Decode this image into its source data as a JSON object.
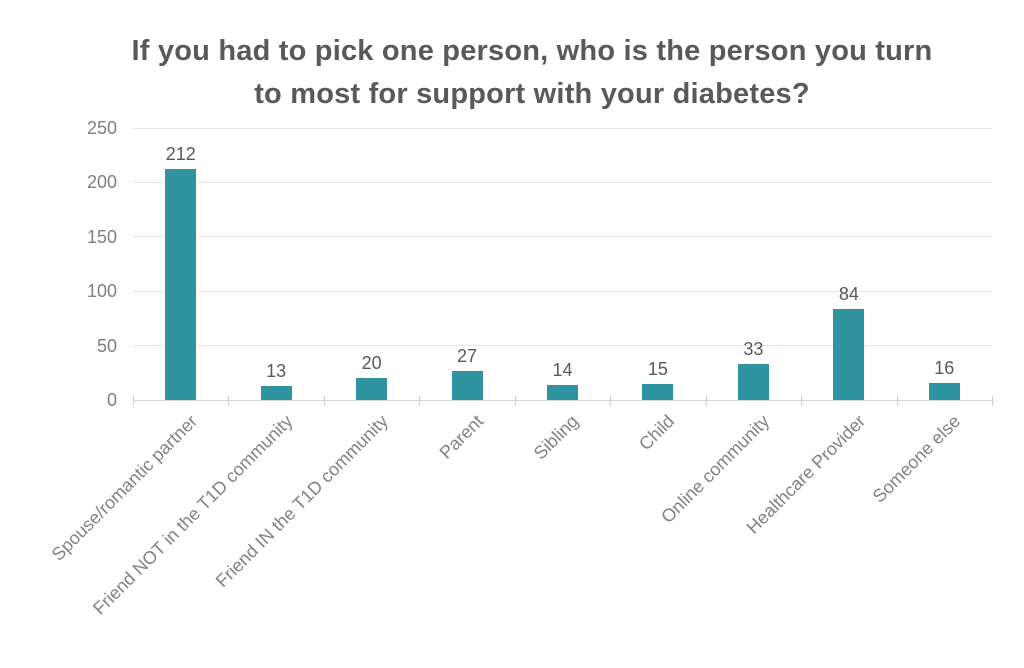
{
  "chart_data": {
    "type": "bar",
    "title": "If you had to pick one person, who is the person you turn to most for support with your diabetes?",
    "categories": [
      "Spouse/romantic partner",
      "Friend NOT in the T1D community",
      "Friend IN the T1D community",
      "Parent",
      "Sibling",
      "Child",
      "Online community",
      "Healthcare Provider",
      "Someone else"
    ],
    "values": [
      212,
      13,
      20,
      27,
      14,
      15,
      33,
      84,
      16
    ],
    "xlabel": "",
    "ylabel": "",
    "ylim": [
      0,
      250
    ],
    "yticks": [
      0,
      50,
      100,
      150,
      200,
      250
    ],
    "grid": "horizontal",
    "legend": "none",
    "bar_color": "#2f949f",
    "data_labels": true
  }
}
